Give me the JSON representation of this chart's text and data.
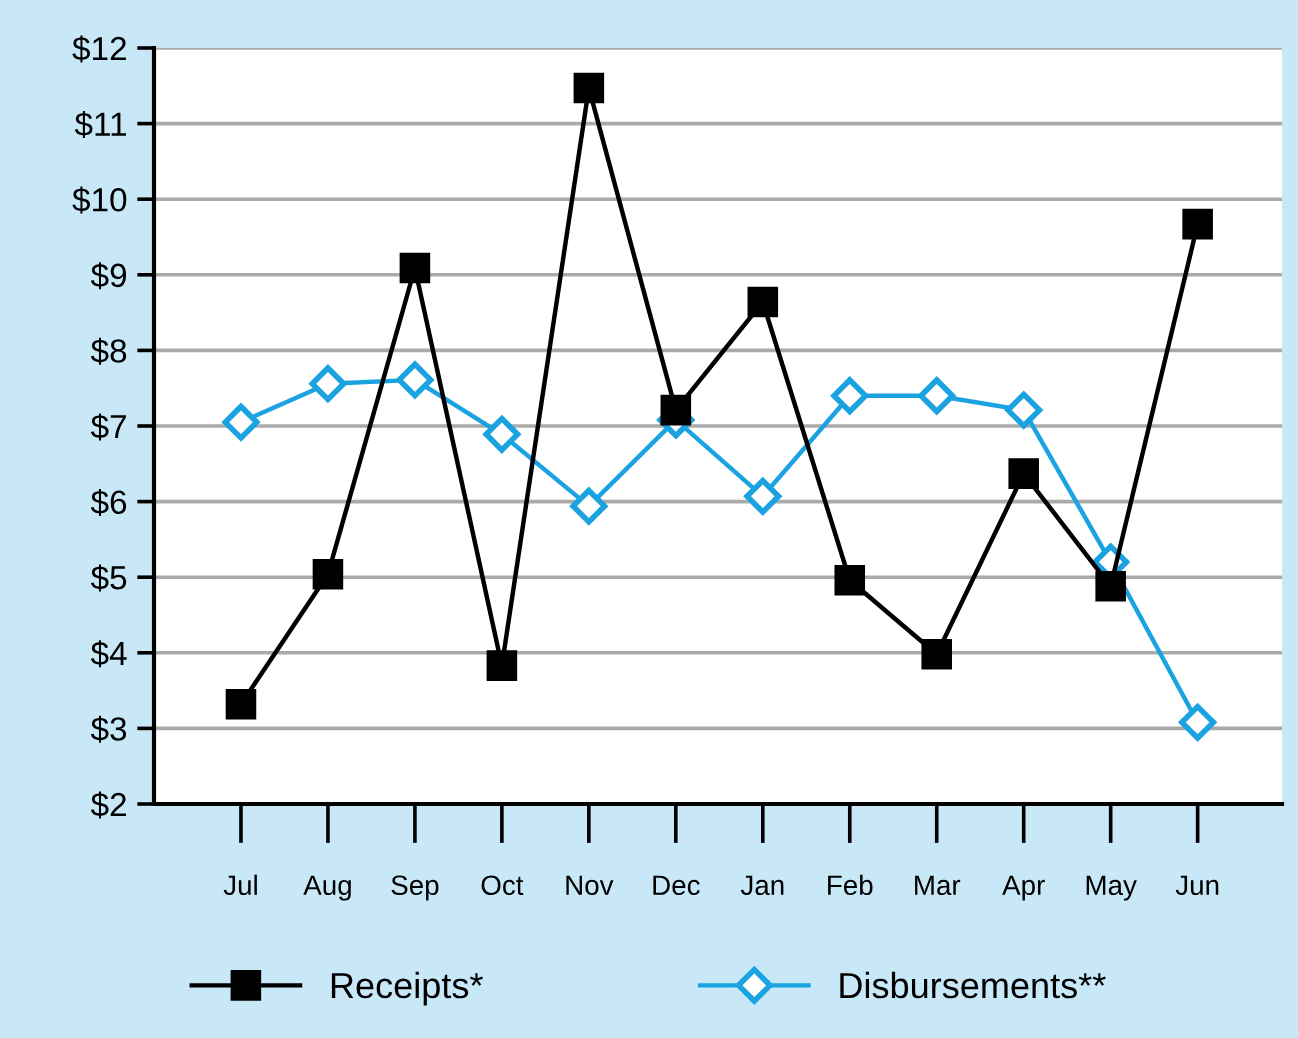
{
  "chart_data": {
    "type": "line",
    "categories": [
      "Jul",
      "Aug",
      "Sep",
      "Oct",
      "Nov",
      "Dec",
      "Jan",
      "Feb",
      "Mar",
      "Apr",
      "May",
      "Jun"
    ],
    "series": [
      {
        "name": "Receipts*",
        "color": "#000000",
        "marker": "square",
        "values": [
          3.32,
          5.04,
          9.09,
          3.83,
          11.47,
          7.21,
          8.64,
          4.96,
          3.98,
          6.37,
          4.88,
          9.67
        ]
      },
      {
        "name": "Disbursements**",
        "color": "#1aa3e0",
        "marker": "diamond",
        "values": [
          7.05,
          7.56,
          7.61,
          6.89,
          5.94,
          7.08,
          6.07,
          7.4,
          7.4,
          7.21,
          5.2,
          3.08
        ]
      }
    ],
    "ylim": [
      2,
      12
    ],
    "yticks": [
      {
        "value": 2,
        "label": "$2"
      },
      {
        "value": 3,
        "label": "$3"
      },
      {
        "value": 4,
        "label": "$4"
      },
      {
        "value": 5,
        "label": "$5"
      },
      {
        "value": 6,
        "label": "$6"
      },
      {
        "value": 7,
        "label": "$7"
      },
      {
        "value": 8,
        "label": "$8"
      },
      {
        "value": 9,
        "label": "$9"
      },
      {
        "value": 10,
        "label": "$10"
      },
      {
        "value": 11,
        "label": "$11"
      },
      {
        "value": 12,
        "label": "$12"
      }
    ],
    "grid": "y",
    "legend": "bottom",
    "line_style": "solid"
  }
}
